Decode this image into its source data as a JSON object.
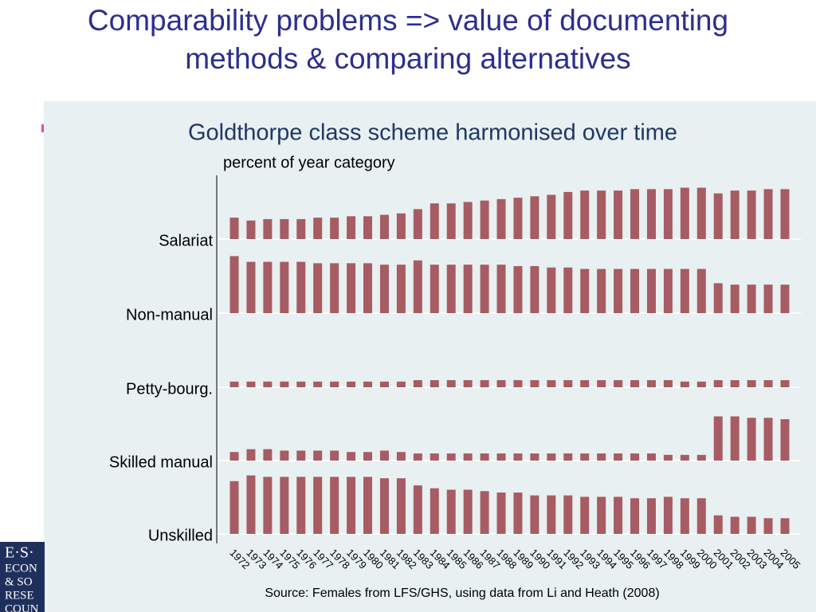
{
  "slide_title": "Comparability problems => value of documenting methods & comparing alternatives",
  "logo": [
    "E·S·",
    "ECON",
    "& SO",
    "RESE",
    "COUN"
  ],
  "chart_data": {
    "type": "bar",
    "title": "Goldthorpe class scheme harmonised over time",
    "y_label": "percent of year category",
    "source": "Source: Females from LFS/GHS, using data from Li and Heath (2008)",
    "categories": [
      "1972",
      "1973",
      "1974",
      "1975",
      "1976",
      "1977",
      "1978",
      "1979",
      "1980",
      "1981",
      "1982",
      "1983",
      "1984",
      "1985",
      "1986",
      "1987",
      "1988",
      "1989",
      "1990",
      "1991",
      "1992",
      "1993",
      "1994",
      "1995",
      "1996",
      "1997",
      "1998",
      "1999",
      "2000",
      "2001",
      "2002",
      "2003",
      "2004",
      "2005"
    ],
    "series": [
      {
        "name": "Salariat",
        "color": "#a65c62",
        "values": [
          15,
          13,
          14,
          14,
          14,
          15,
          15,
          16,
          16,
          17,
          18,
          21,
          25,
          25,
          26,
          27,
          28,
          29,
          30,
          31,
          33,
          34,
          34,
          34,
          35,
          35,
          35,
          36,
          36,
          32,
          34,
          34,
          35,
          35
        ]
      },
      {
        "name": "Non-manual",
        "color": "#a65c62",
        "values": [
          40,
          36,
          36,
          36,
          36,
          35,
          35,
          35,
          35,
          34,
          34,
          37,
          34,
          34,
          34,
          34,
          34,
          33,
          33,
          32,
          32,
          31,
          31,
          31,
          31,
          31,
          31,
          31,
          31,
          21,
          20,
          20,
          20,
          20
        ]
      },
      {
        "name": "Petty-bourg.",
        "color": "#a65c62",
        "values": [
          4,
          4,
          4,
          4,
          4,
          4,
          4,
          4,
          4,
          4,
          4,
          5,
          5,
          5,
          5,
          5,
          5,
          5,
          5,
          5,
          5,
          5,
          5,
          5,
          5,
          5,
          5,
          4,
          4,
          5,
          5,
          5,
          5,
          5
        ]
      },
      {
        "name": "Skilled manual",
        "color": "#a65c62",
        "values": [
          6,
          8,
          8,
          7,
          7,
          7,
          7,
          6,
          6,
          7,
          6,
          5,
          5,
          5,
          5,
          5,
          5,
          5,
          5,
          5,
          5,
          5,
          5,
          5,
          5,
          5,
          4,
          4,
          4,
          31,
          31,
          30,
          30,
          29
        ]
      },
      {
        "name": "Unskilled",
        "color": "#a65c62",
        "values": [
          37,
          41,
          40,
          40,
          40,
          40,
          40,
          40,
          40,
          39,
          39,
          34,
          32,
          31,
          31,
          30,
          29,
          29,
          27,
          27,
          27,
          26,
          26,
          26,
          25,
          25,
          26,
          25,
          25,
          13,
          12,
          12,
          11,
          11
        ]
      }
    ]
  }
}
